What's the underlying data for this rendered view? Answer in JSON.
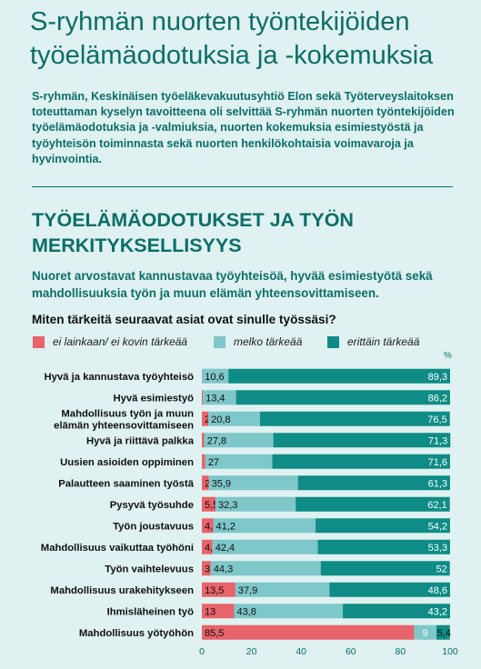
{
  "page": {
    "title": "S-ryhmän nuorten työntekijöiden työelämäodotuksia ja -kokemuksia",
    "intro": "S-ryhmän, Keskinäisen työeläkevakuutusyhtiö Elon sekä Työterveys­laitoksen toteuttaman kyselyn tavoitteena oli selvittää S-ryhmän nuorten työntekijöiden työelämäodotuksia ja -valmiuksia, nuorten kokemuksia esimiestyöstä ja työyhteisön toiminnasta sekä nuorten henkilökohtaisia voimavaroja ja hyvinvointia.",
    "section_title": "TYÖELÄMÄODOTUKSET JA TYÖN MERKITYKSELLISYYS",
    "lead": "Nuoret arvostavat kannustavaa työyhteisöä, hyvää esimiestyötä sekä mahdollisuuksia työn ja muun elämän yhteensovittamiseen.",
    "question": "Miten tärkeitä seuraavat asiat ovat sinulle työssäsi?",
    "unit": "%"
  },
  "chart_data": {
    "type": "bar",
    "stacked": true,
    "orientation": "horizontal",
    "xlim": [
      0,
      100
    ],
    "x_ticks": [
      0,
      20,
      40,
      60,
      80,
      100
    ],
    "categories": [
      "Hyvä ja kannustava työyhteisö",
      "Hyvä esimiestyö",
      "Mahdollisuus työn ja muun\nelämän yhteensovittamiseen",
      "Hyvä ja riittävä palkka",
      "Uusien asioiden oppiminen",
      "Palautteen saaminen työstä",
      "Pysyvä työsuhde",
      "Työn joustavuus",
      "Mahdollisuus vaikuttaa työhöni",
      "Työn vaihtelevuus",
      "Mahdollisuus urakehitykseen",
      "Ihmisläheinen työ",
      "Mahdollisuus yötyöhön"
    ],
    "series": [
      {
        "name": "ei lainkaan/ ei kovin tärkeää",
        "color": "#e8636a",
        "values": [
          0.1,
          0.4,
          2.6,
          1,
          1.4,
          2.8,
          5.5,
          4.6,
          4.3,
          3.6,
          13.5,
          13,
          85.5
        ],
        "labels": [
          "",
          "",
          "2,6",
          "1",
          "1,4",
          "2,8",
          "5,5",
          "4,6",
          "4,3",
          "3,6",
          "13,5",
          "13",
          "85,5"
        ]
      },
      {
        "name": "melko tärkeää",
        "color": "#7ec7cb",
        "values": [
          10.6,
          13.4,
          20.8,
          27.8,
          27,
          35.9,
          32.3,
          41.2,
          42.4,
          44.3,
          37.9,
          43.8,
          9
        ],
        "labels": [
          "10,6",
          "13,4",
          "20,8",
          "27,8",
          "27",
          "35,9",
          "32,3",
          "41,2",
          "42,4",
          "44,3",
          "37,9",
          "43,8",
          "9"
        ]
      },
      {
        "name": "erittäin tärkeää",
        "color": "#0e8c85",
        "values": [
          89.3,
          86.2,
          76.5,
          71.3,
          71.6,
          61.3,
          62.1,
          54.2,
          53.3,
          52,
          48.6,
          43.2,
          5.4
        ],
        "labels": [
          "89,3",
          "86,2",
          "76,5",
          "71,3",
          "71,6",
          "61,3",
          "62,1",
          "54,2",
          "53,3",
          "52",
          "48,6",
          "43,2",
          "5,4"
        ]
      }
    ]
  }
}
